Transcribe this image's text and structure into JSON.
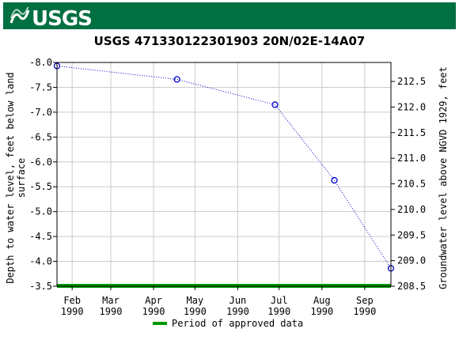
{
  "header": {
    "logo_text": "USGS",
    "bar_color": "#006f41"
  },
  "chart_data": {
    "type": "line",
    "title": "USGS 471330122301903 20N/02E-14A07",
    "ylabel_left": "Depth to water level, feet below land surface",
    "ylabel_right": "Groundwater level above NGVD 1929, feet",
    "x_ticks": [
      {
        "month": "Feb",
        "year": "1990",
        "date": "1990-02-01"
      },
      {
        "month": "Mar",
        "year": "1990",
        "date": "1990-03-01"
      },
      {
        "month": "Apr",
        "year": "1990",
        "date": "1990-04-01"
      },
      {
        "month": "May",
        "year": "1990",
        "date": "1990-05-01"
      },
      {
        "month": "Jun",
        "year": "1990",
        "date": "1990-06-01"
      },
      {
        "month": "Jul",
        "year": "1990",
        "date": "1990-07-01"
      },
      {
        "month": "Aug",
        "year": "1990",
        "date": "1990-08-01"
      },
      {
        "month": "Sep",
        "year": "1990",
        "date": "1990-09-01"
      }
    ],
    "xlim": [
      "1990-01-21",
      "1990-09-20"
    ],
    "y_left_ticks": [
      "-8.0",
      "-7.5",
      "-7.0",
      "-6.5",
      "-6.0",
      "-5.5",
      "-5.0",
      "-4.5",
      "-4.0",
      "-3.5"
    ],
    "ylim_left": [
      -8.0,
      -3.5
    ],
    "y_right_ticks": [
      "212.5",
      "212.0",
      "211.5",
      "211.0",
      "210.5",
      "210.0",
      "209.5",
      "209.0",
      "208.5"
    ],
    "series": [
      {
        "x": [
          "1990-01-21",
          "1990-04-18",
          "1990-06-28",
          "1990-08-10",
          "1990-09-20"
        ],
        "y": [
          -7.93,
          -7.66,
          -7.15,
          -5.63,
          -3.86
        ],
        "color": "#0000cc",
        "line_style": "dotted",
        "marker": "open-circle"
      }
    ],
    "approved_period": {
      "start": "1990-01-21",
      "end": "1990-09-20",
      "color": "#009900"
    },
    "legend": [
      {
        "label": "Period of approved data",
        "color": "#009900"
      }
    ],
    "legend_position": "bottom",
    "grid": true
  }
}
